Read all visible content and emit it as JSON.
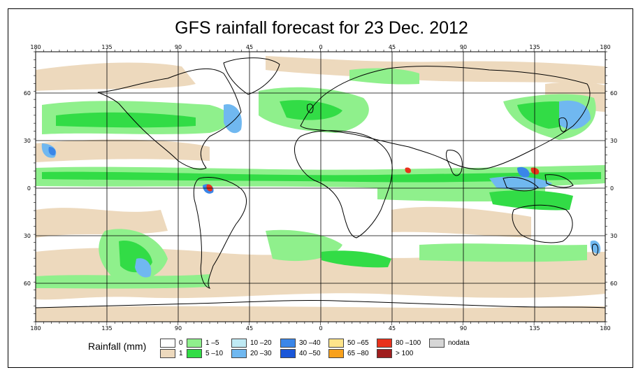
{
  "title": "GFS rainfall forecast for 23 Dec. 2012",
  "axes": {
    "lon_ticks_top": [
      "180",
      "135",
      "90",
      "45",
      "0",
      "45",
      "90",
      "135",
      "180"
    ],
    "lon_ticks_bottom": [
      "180",
      "135",
      "90",
      "45",
      "0",
      "45",
      "90",
      "135",
      "180"
    ],
    "lat_ticks_left": [
      "60",
      "30",
      "0",
      "30",
      "60"
    ],
    "lat_ticks_right": [
      "60",
      "30",
      "0",
      "30",
      "60"
    ]
  },
  "legend": {
    "title": "Rainfall (mm)",
    "items": [
      {
        "label": "0",
        "color": "#ffffff"
      },
      {
        "label": "1",
        "color": "#edd9bd"
      },
      {
        "label": "1 –5",
        "color": "#8ff08c"
      },
      {
        "label": "5 –10",
        "color": "#32dc46"
      },
      {
        "label": "10 –20",
        "color": "#bfeaf4"
      },
      {
        "label": "20 –30",
        "color": "#70b8f0"
      },
      {
        "label": "30 –40",
        "color": "#3a86e8"
      },
      {
        "label": "40 –50",
        "color": "#1a56d8"
      },
      {
        "label": "50 –65",
        "color": "#fde48a"
      },
      {
        "label": "65 –80",
        "color": "#f8a11c"
      },
      {
        "label": "80 –100",
        "color": "#e8321c"
      },
      {
        "label": "> 100",
        "color": "#a01e1e"
      },
      {
        "label": "nodata",
        "color": "#d6d6d6"
      }
    ]
  }
}
